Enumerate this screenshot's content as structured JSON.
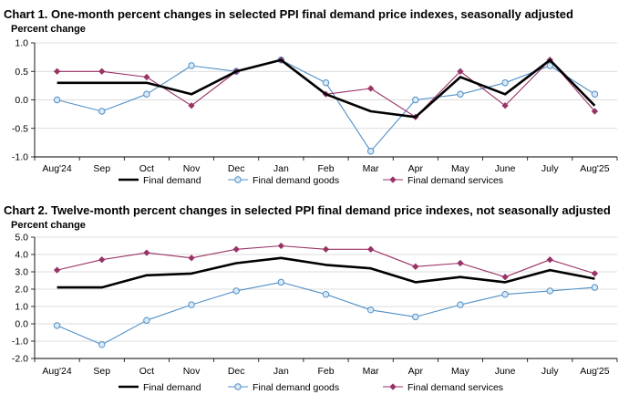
{
  "colors": {
    "final_demand": "#000000",
    "final_demand_goods": "#4f8fc6",
    "final_demand_services": "#993366",
    "gridline": "#d0d0d0",
    "axis": "#000000"
  },
  "chart_data": [
    {
      "type": "line",
      "title": "Chart 1. One-month percent changes in selected PPI final demand price indexes, seasonally adjusted",
      "ylabel": "Percent change",
      "categories": [
        "Aug'24",
        "Sep",
        "Oct",
        "Nov",
        "Dec",
        "Jan",
        "Feb",
        "Mar",
        "Apr",
        "May",
        "June",
        "July",
        "Aug'25"
      ],
      "ylim": [
        -1.0,
        1.0
      ],
      "yticks": [
        -1.0,
        -0.5,
        0.0,
        0.5,
        1.0
      ],
      "ytick_labels": [
        "-1.0",
        "-0.5",
        "0.0",
        "0.5",
        "1.0"
      ],
      "grid": true,
      "legend": "bottom",
      "series": [
        {
          "name": "Final demand",
          "key": "final_demand",
          "marker": "none",
          "values": [
            0.3,
            0.3,
            0.3,
            0.1,
            0.5,
            0.7,
            0.1,
            -0.2,
            -0.3,
            0.4,
            0.1,
            0.7,
            -0.1
          ]
        },
        {
          "name": "Final demand goods",
          "key": "final_demand_goods",
          "marker": "circle",
          "values": [
            0.0,
            -0.2,
            0.1,
            0.6,
            0.5,
            0.7,
            0.3,
            -0.9,
            0.0,
            0.1,
            0.3,
            0.6,
            0.1
          ]
        },
        {
          "name": "Final demand services",
          "key": "final_demand_services",
          "marker": "diamond",
          "values": [
            0.5,
            0.5,
            0.4,
            -0.1,
            0.5,
            0.7,
            0.1,
            0.2,
            -0.3,
            0.5,
            -0.1,
            0.7,
            -0.2
          ]
        }
      ]
    },
    {
      "type": "line",
      "title": "Chart 2. Twelve-month percent changes in selected PPI final demand price indexes, not seasonally adjusted",
      "ylabel": "Percent change",
      "categories": [
        "Aug'24",
        "Sep",
        "Oct",
        "Nov",
        "Dec",
        "Jan",
        "Feb",
        "Mar",
        "Apr",
        "May",
        "June",
        "July",
        "Aug'25"
      ],
      "ylim": [
        -2.0,
        5.0
      ],
      "yticks": [
        -2.0,
        -1.0,
        0.0,
        1.0,
        2.0,
        3.0,
        4.0,
        5.0
      ],
      "ytick_labels": [
        "-2.0",
        "-1.0",
        "0.0",
        "1.0",
        "2.0",
        "3.0",
        "4.0",
        "5.0"
      ],
      "grid": true,
      "legend": "bottom",
      "series": [
        {
          "name": "Final demand",
          "key": "final_demand",
          "marker": "none",
          "values": [
            2.1,
            2.1,
            2.8,
            2.9,
            3.5,
            3.8,
            3.4,
            3.2,
            2.4,
            2.7,
            2.4,
            3.1,
            2.6
          ]
        },
        {
          "name": "Final demand goods",
          "key": "final_demand_goods",
          "marker": "circle",
          "values": [
            -0.1,
            -1.2,
            0.2,
            1.1,
            1.9,
            2.4,
            1.7,
            0.8,
            0.4,
            1.1,
            1.7,
            1.9,
            2.1
          ]
        },
        {
          "name": "Final demand services",
          "key": "final_demand_services",
          "marker": "diamond",
          "values": [
            3.1,
            3.7,
            4.1,
            3.8,
            4.3,
            4.5,
            4.3,
            4.3,
            3.3,
            3.5,
            2.7,
            3.7,
            2.9
          ]
        }
      ]
    }
  ]
}
